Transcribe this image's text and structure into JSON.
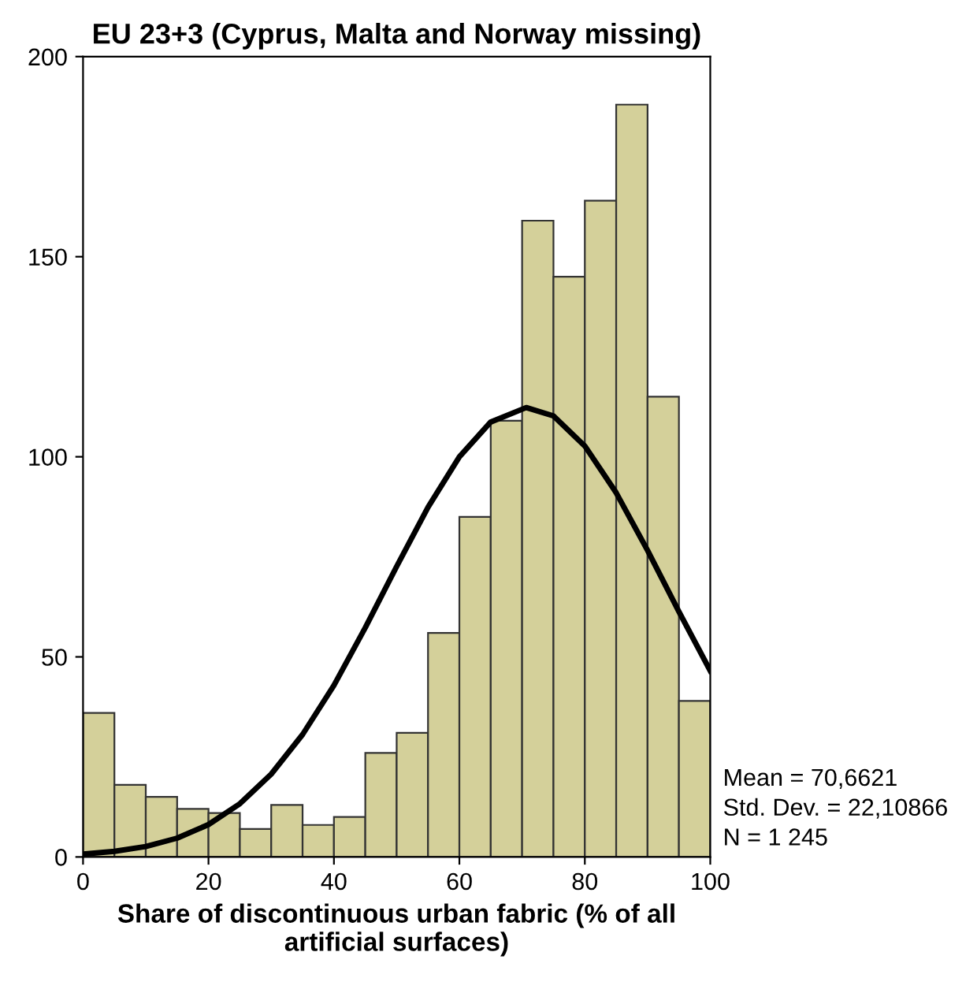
{
  "chart_data": {
    "type": "histogram",
    "title": "EU 23+3 (Cyprus, Malta and Norway missing)",
    "xlabel": "Share of discontinuous urban fabric (% of all\nartificial surfaces)",
    "bins": [
      0,
      5,
      10,
      15,
      20,
      25,
      30,
      35,
      40,
      45,
      50,
      55,
      60,
      65,
      70,
      75,
      80,
      85,
      90,
      95,
      100
    ],
    "values": [
      36,
      18,
      15,
      12,
      11,
      7,
      13,
      8,
      10,
      26,
      31,
      56,
      85,
      109,
      159,
      145,
      164,
      188,
      115,
      39
    ],
    "color": "#d4d09a",
    "series": [
      {
        "type": "line",
        "color": "#000000",
        "x": [
          0,
          5,
          10,
          15,
          20,
          25,
          30,
          35,
          40,
          45,
          50,
          55,
          60,
          65,
          70.66,
          75,
          80,
          85,
          90,
          95,
          100
        ],
        "values": [
          0.7,
          1.4,
          2.6,
          4.7,
          8.1,
          13.3,
          20.7,
          30.6,
          42.9,
          57.3,
          72.6,
          87.4,
          100.0,
          108.7,
          112.3,
          110.2,
          102.7,
          91.0,
          76.6,
          61.3,
          46.5
        ]
      }
    ],
    "xlim": [
      0,
      100
    ],
    "xticks": [
      0,
      20,
      40,
      60,
      80,
      100
    ],
    "ylim": [
      0,
      200
    ],
    "yticks": [
      0,
      50,
      100,
      150,
      200
    ],
    "grid": false,
    "legend": false,
    "annotations": [
      "Mean = 70,6621",
      "Std. Dev. = 22,10866",
      "N = 1 245"
    ]
  }
}
